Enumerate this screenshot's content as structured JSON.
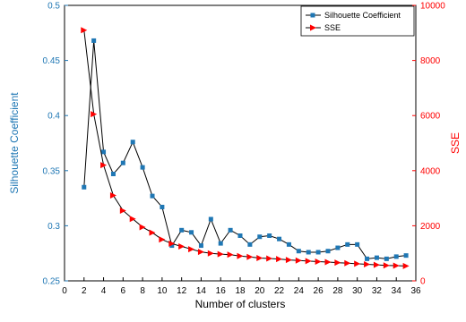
{
  "chart_data": {
    "type": "line",
    "xlabel": "Number of clusters",
    "ylabel_left": "Silhouette Coefficient",
    "ylabel_right": "SSE",
    "xlim": [
      0,
      36
    ],
    "ylim_left": [
      0.25,
      0.5
    ],
    "ylim_right": [
      0,
      10000
    ],
    "x_ticks": [
      0,
      2,
      4,
      6,
      8,
      10,
      12,
      14,
      16,
      18,
      20,
      22,
      24,
      26,
      28,
      30,
      32,
      34,
      36
    ],
    "y_left_ticks": [
      0.25,
      0.3,
      0.35,
      0.4,
      0.45,
      0.5
    ],
    "y_right_ticks": [
      0,
      2000,
      4000,
      6000,
      8000,
      10000
    ],
    "grid": false,
    "legend_position": "top-right",
    "colors": {
      "left_axis": "#1f77b4",
      "right_axis": "#ff0000",
      "line": "#000000"
    },
    "series": [
      {
        "name": "Silhouette Coefficient",
        "axis": "left",
        "marker": "square",
        "color": "#1f77b4",
        "x": [
          2,
          3,
          4,
          5,
          6,
          7,
          8,
          9,
          10,
          11,
          12,
          13,
          14,
          15,
          16,
          17,
          18,
          19,
          20,
          21,
          22,
          23,
          24,
          25,
          26,
          27,
          28,
          29,
          30,
          31,
          32,
          33,
          34,
          35
        ],
        "values": [
          0.335,
          0.468,
          0.367,
          0.347,
          0.357,
          0.376,
          0.353,
          0.327,
          0.317,
          0.282,
          0.296,
          0.294,
          0.282,
          0.306,
          0.284,
          0.296,
          0.291,
          0.283,
          0.29,
          0.291,
          0.288,
          0.283,
          0.277,
          0.276,
          0.276,
          0.277,
          0.28,
          0.283,
          0.283,
          0.27,
          0.271,
          0.27,
          0.272,
          0.273
        ]
      },
      {
        "name": "SSE",
        "axis": "right",
        "marker": "triangle-right",
        "color": "#ff0000",
        "x": [
          2,
          3,
          4,
          5,
          6,
          7,
          8,
          9,
          10,
          11,
          12,
          13,
          14,
          15,
          16,
          17,
          18,
          19,
          20,
          21,
          22,
          23,
          24,
          25,
          26,
          27,
          28,
          29,
          30,
          31,
          32,
          33,
          34,
          35
        ],
        "values": [
          9100,
          6050,
          4200,
          3100,
          2550,
          2250,
          1950,
          1750,
          1500,
          1350,
          1250,
          1150,
          1050,
          1000,
          970,
          950,
          900,
          870,
          830,
          810,
          790,
          760,
          740,
          720,
          700,
          680,
          660,
          640,
          620,
          600,
          580,
          560,
          550,
          540
        ]
      }
    ]
  }
}
